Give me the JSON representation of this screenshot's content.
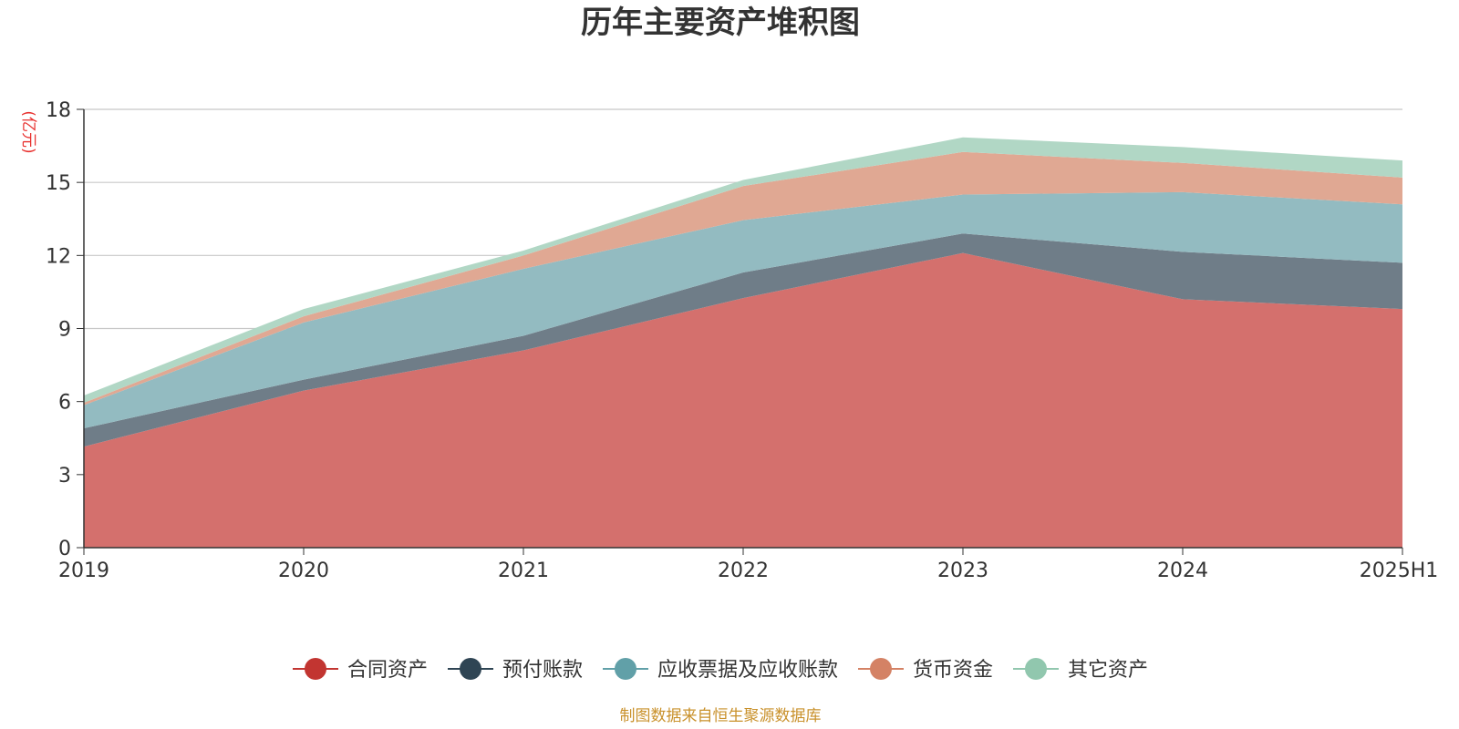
{
  "chart_data": {
    "type": "area",
    "stacked": true,
    "title": "历年主要资产堆积图",
    "ylabel": "(亿元)",
    "xlabel": "",
    "ylim": [
      0,
      18
    ],
    "yticks": [
      0,
      3,
      6,
      9,
      12,
      15,
      18
    ],
    "categories": [
      "2019",
      "2020",
      "2021",
      "2022",
      "2023",
      "2024",
      "2025H1"
    ],
    "series": [
      {
        "name": "合同资产",
        "color": "#c23531",
        "fill": "#d4706d",
        "values": [
          4.15,
          6.45,
          8.1,
          10.25,
          12.1,
          10.2,
          9.8
        ]
      },
      {
        "name": "预付账款",
        "color": "#2f4554",
        "fill": "#6f7d88",
        "values": [
          0.75,
          0.45,
          0.6,
          1.05,
          0.8,
          1.95,
          1.9
        ]
      },
      {
        "name": "应收票据及应收账款",
        "color": "#61a0a8",
        "fill": "#93bbc1",
        "values": [
          0.95,
          2.35,
          2.75,
          2.15,
          1.6,
          2.45,
          2.4
        ]
      },
      {
        "name": "货币资金",
        "color": "#d48265",
        "fill": "#e0a893",
        "values": [
          0.1,
          0.25,
          0.55,
          1.4,
          1.75,
          1.2,
          1.1
        ]
      },
      {
        "name": "其它资产",
        "color": "#91c7ae",
        "fill": "#b1d7c5",
        "values": [
          0.3,
          0.3,
          0.2,
          0.25,
          0.6,
          0.65,
          0.7
        ]
      }
    ],
    "legend_position": "bottom-center",
    "grid": true,
    "source": "制图数据来自恒生聚源数据库"
  }
}
